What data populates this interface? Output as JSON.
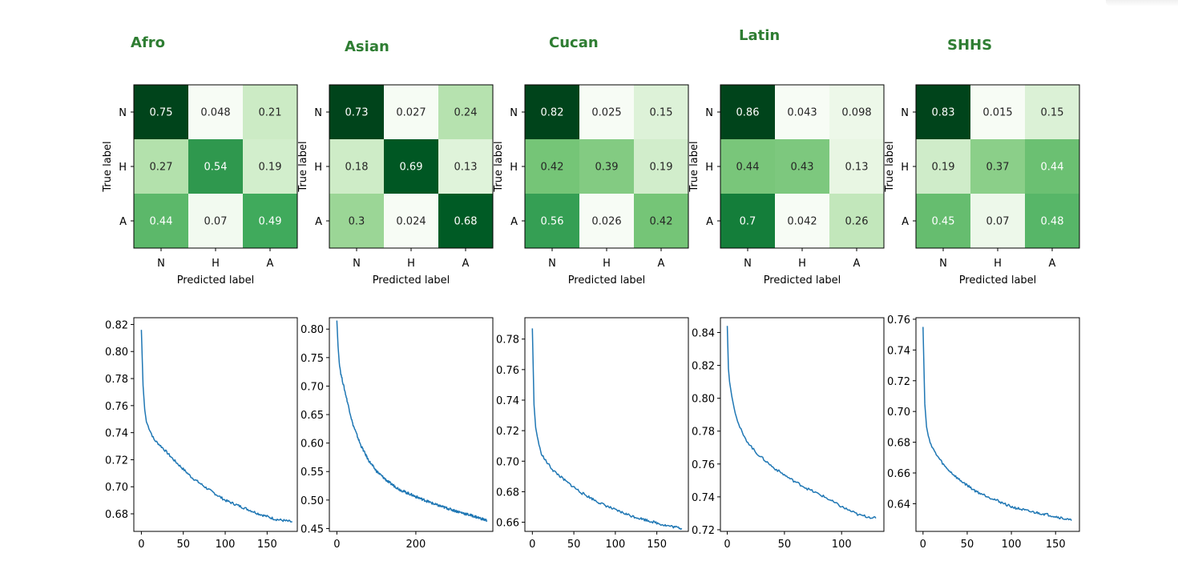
{
  "colors": {
    "title": "#2e7d32",
    "line": "#1f77b4",
    "text_dark": "#262626",
    "text_light": "#ffffff",
    "cmap_low": "#f7fcf5",
    "cmap_high": "#00441b"
  },
  "chart_data": [
    {
      "type": "heatmap",
      "title": "Afro",
      "ylabel": "True label",
      "xlabel": "Predicted label",
      "row_labels": [
        "N",
        "H",
        "A"
      ],
      "col_labels": [
        "N",
        "H",
        "A"
      ],
      "cells": [
        [
          "0.75",
          "0.048",
          "0.21"
        ],
        [
          "0.27",
          "0.54",
          "0.19"
        ],
        [
          "0.44",
          "0.07",
          "0.49"
        ]
      ]
    },
    {
      "type": "heatmap",
      "title": "Asian",
      "ylabel": "True label",
      "xlabel": "Predicted label",
      "row_labels": [
        "N",
        "H",
        "A"
      ],
      "col_labels": [
        "N",
        "H",
        "A"
      ],
      "cells": [
        [
          "0.73",
          "0.027",
          "0.24"
        ],
        [
          "0.18",
          "0.69",
          "0.13"
        ],
        [
          "0.3",
          "0.024",
          "0.68"
        ]
      ]
    },
    {
      "type": "heatmap",
      "title": "Cucan",
      "ylabel": "True label",
      "xlabel": "Predicted label",
      "row_labels": [
        "N",
        "H",
        "A"
      ],
      "col_labels": [
        "N",
        "H",
        "A"
      ],
      "cells": [
        [
          "0.82",
          "0.025",
          "0.15"
        ],
        [
          "0.42",
          "0.39",
          "0.19"
        ],
        [
          "0.56",
          "0.026",
          "0.42"
        ]
      ]
    },
    {
      "type": "heatmap",
      "title": "Latin",
      "ylabel": "True label",
      "xlabel": "Predicted label",
      "row_labels": [
        "N",
        "H",
        "A"
      ],
      "col_labels": [
        "N",
        "H",
        "A"
      ],
      "cells": [
        [
          "0.86",
          "0.043",
          "0.098"
        ],
        [
          "0.44",
          "0.43",
          "0.13"
        ],
        [
          "0.7",
          "0.042",
          "0.26"
        ]
      ]
    },
    {
      "type": "heatmap",
      "title": "SHHS",
      "ylabel": "True label",
      "xlabel": "Predicted label",
      "row_labels": [
        "N",
        "H",
        "A"
      ],
      "col_labels": [
        "N",
        "H",
        "A"
      ],
      "cells": [
        [
          "0.83",
          "0.015",
          "0.15"
        ],
        [
          "0.19",
          "0.37",
          "0.44"
        ],
        [
          "0.45",
          "0.07",
          "0.48"
        ]
      ]
    },
    {
      "type": "line",
      "series": [
        {
          "x": [
            0,
            2,
            4,
            6,
            10,
            15,
            25,
            40,
            60,
            80,
            100,
            120,
            140,
            160,
            180
          ],
          "values": [
            0.816,
            0.775,
            0.757,
            0.748,
            0.742,
            0.735,
            0.729,
            0.719,
            0.707,
            0.698,
            0.69,
            0.685,
            0.68,
            0.676,
            0.674
          ]
        }
      ],
      "xlim": [
        -9,
        186
      ],
      "ylim": [
        0.667,
        0.825
      ],
      "xticks": [
        "0",
        "50",
        "100",
        "150"
      ],
      "xtick_values": [
        0,
        50,
        100,
        150
      ],
      "yticks": [
        "0.68",
        "0.70",
        "0.72",
        "0.74",
        "0.76",
        "0.78",
        "0.80",
        "0.82"
      ],
      "ytick_values": [
        0.68,
        0.7,
        0.72,
        0.74,
        0.76,
        0.78,
        0.8,
        0.82
      ]
    },
    {
      "type": "line",
      "series": [
        {
          "x": [
            0,
            3,
            6,
            10,
            20,
            40,
            60,
            80,
            100,
            130,
            160,
            200,
            250,
            300,
            350,
            380
          ],
          "values": [
            0.815,
            0.77,
            0.742,
            0.722,
            0.692,
            0.634,
            0.597,
            0.57,
            0.551,
            0.532,
            0.518,
            0.506,
            0.492,
            0.481,
            0.471,
            0.464
          ]
        }
      ],
      "xlim": [
        -19,
        395
      ],
      "ylim": [
        0.445,
        0.82
      ],
      "xticks": [
        "0",
        "200"
      ],
      "xtick_values": [
        0,
        200
      ],
      "yticks": [
        "0.45",
        "0.50",
        "0.55",
        "0.60",
        "0.65",
        "0.70",
        "0.75",
        "0.80"
      ],
      "ytick_values": [
        0.45,
        0.5,
        0.55,
        0.6,
        0.65,
        0.7,
        0.75,
        0.8
      ]
    },
    {
      "type": "line",
      "series": [
        {
          "x": [
            0,
            2,
            4,
            6,
            10,
            15,
            25,
            40,
            60,
            80,
            100,
            120,
            140,
            160,
            180
          ],
          "values": [
            0.787,
            0.737,
            0.722,
            0.716,
            0.706,
            0.701,
            0.694,
            0.687,
            0.679,
            0.673,
            0.668,
            0.664,
            0.661,
            0.658,
            0.656
          ]
        }
      ],
      "xlim": [
        -9,
        188
      ],
      "ylim": [
        0.654,
        0.794
      ],
      "xticks": [
        "0",
        "50",
        "100",
        "150"
      ],
      "xtick_values": [
        0,
        50,
        100,
        150
      ],
      "yticks": [
        "0.66",
        "0.68",
        "0.70",
        "0.72",
        "0.74",
        "0.76",
        "0.78"
      ],
      "ytick_values": [
        0.66,
        0.68,
        0.7,
        0.72,
        0.74,
        0.76,
        0.78
      ]
    },
    {
      "type": "line",
      "series": [
        {
          "x": [
            0,
            1,
            2,
            4,
            6,
            10,
            15,
            25,
            40,
            55,
            70,
            85,
            100,
            115,
            130
          ],
          "values": [
            0.844,
            0.818,
            0.81,
            0.801,
            0.794,
            0.784,
            0.776,
            0.767,
            0.758,
            0.751,
            0.745,
            0.74,
            0.734,
            0.729,
            0.727
          ]
        }
      ],
      "xlim": [
        -6,
        137
      ],
      "ylim": [
        0.719,
        0.849
      ],
      "xticks": [
        "0",
        "50",
        "100"
      ],
      "xtick_values": [
        0,
        50,
        100
      ],
      "yticks": [
        "0.72",
        "0.74",
        "0.76",
        "0.78",
        "0.80",
        "0.82",
        "0.84"
      ],
      "ytick_values": [
        0.72,
        0.74,
        0.76,
        0.78,
        0.8,
        0.82,
        0.84
      ]
    },
    {
      "type": "line",
      "series": [
        {
          "x": [
            0,
            2,
            4,
            6,
            10,
            15,
            25,
            40,
            60,
            80,
            100,
            120,
            140,
            155,
            168
          ],
          "values": [
            0.755,
            0.705,
            0.69,
            0.684,
            0.677,
            0.672,
            0.664,
            0.656,
            0.648,
            0.643,
            0.638,
            0.635,
            0.633,
            0.631,
            0.629
          ]
        }
      ],
      "xlim": [
        -8,
        177
      ],
      "ylim": [
        0.622,
        0.761
      ],
      "xticks": [
        "0",
        "50",
        "100",
        "150"
      ],
      "xtick_values": [
        0,
        50,
        100,
        150
      ],
      "yticks": [
        "0.64",
        "0.66",
        "0.68",
        "0.70",
        "0.72",
        "0.74",
        "0.76"
      ],
      "ytick_values": [
        0.64,
        0.66,
        0.68,
        0.7,
        0.72,
        0.74,
        0.76
      ]
    }
  ]
}
